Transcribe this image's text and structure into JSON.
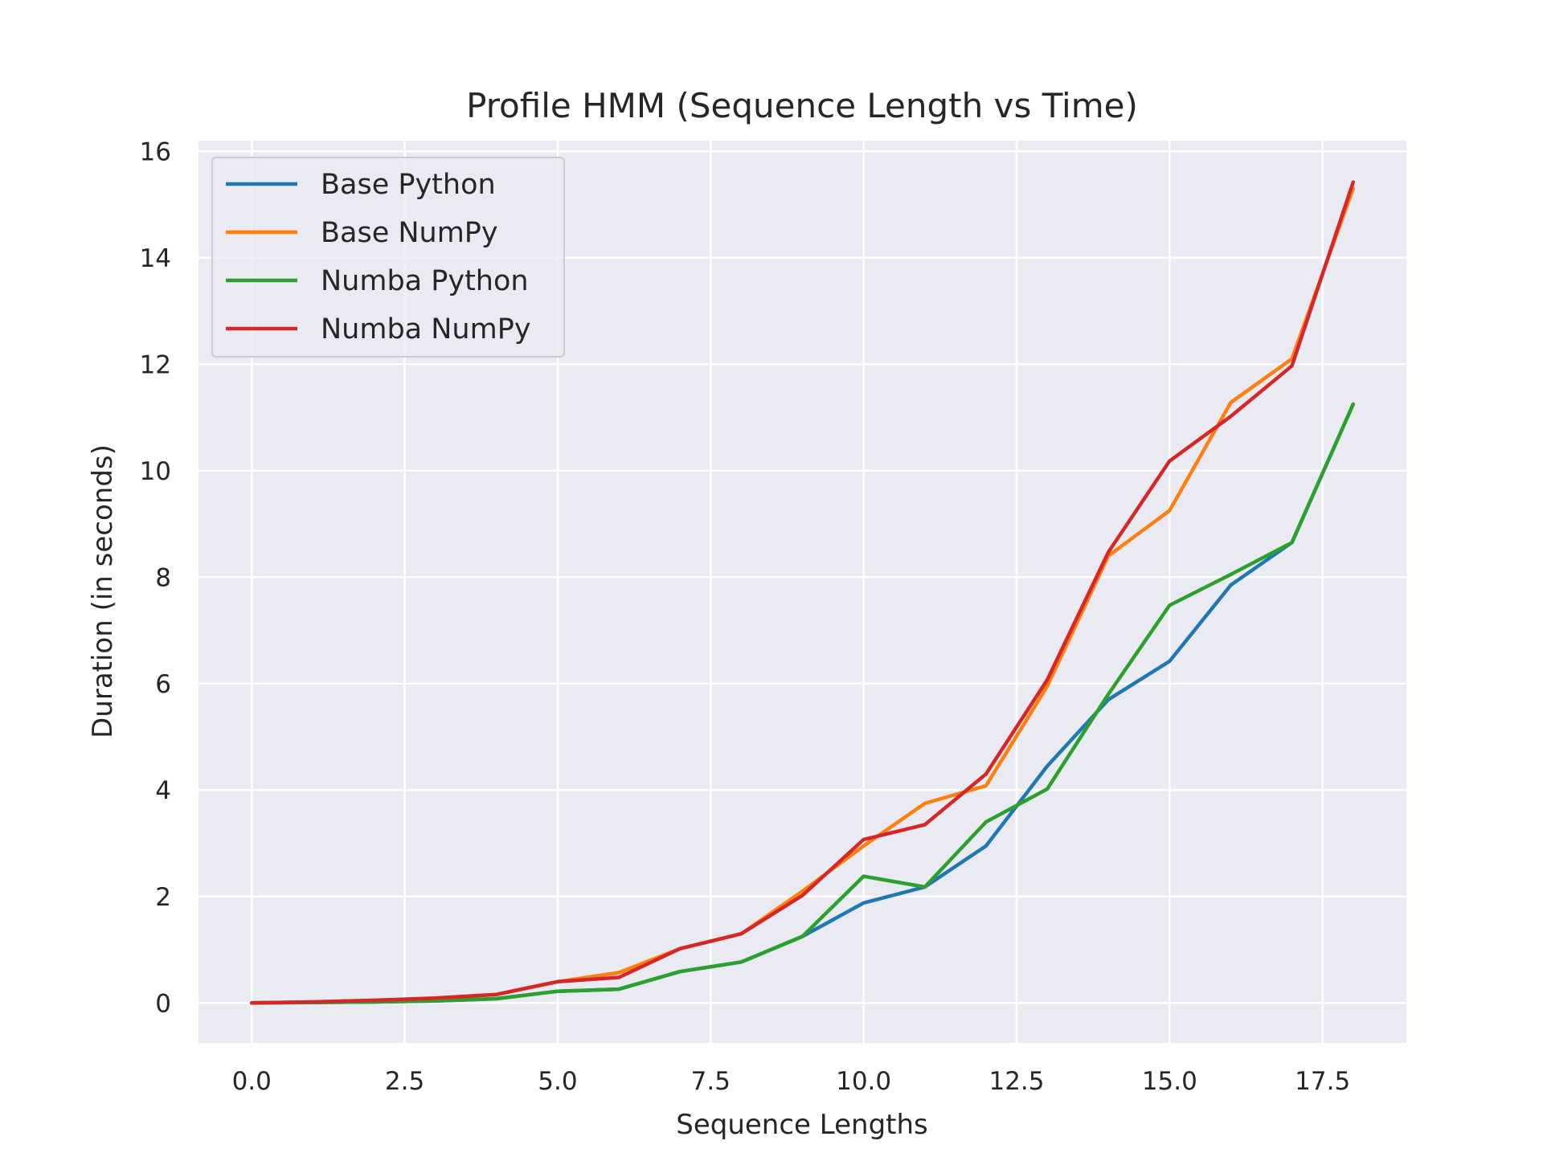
{
  "chart_data": {
    "type": "line",
    "title": "Profile HMM (Sequence Length vs Time)",
    "xlabel": "Sequence Lengths",
    "ylabel": "Duration (in seconds)",
    "xlim": [
      -0.87,
      18.87
    ],
    "ylim": [
      -0.75,
      16.2
    ],
    "xticks": [
      "0.0",
      "2.5",
      "5.0",
      "7.5",
      "10.0",
      "12.5",
      "15.0",
      "17.5"
    ],
    "yticks": [
      "0",
      "2",
      "4",
      "6",
      "8",
      "10",
      "12",
      "14",
      "16"
    ],
    "grid": true,
    "legend_position": "top-left",
    "x": [
      0,
      1,
      2,
      3,
      4,
      5,
      6,
      7,
      8,
      9,
      10,
      11,
      12,
      13,
      14,
      15,
      16,
      17,
      18
    ],
    "series": [
      {
        "name": "Base Python",
        "color": "#1f77b4",
        "values": [
          0.0,
          0.01,
          0.02,
          0.04,
          0.08,
          0.22,
          0.26,
          0.59,
          0.77,
          1.25,
          1.88,
          2.18,
          2.95,
          4.45,
          5.7,
          6.42,
          7.85,
          8.65,
          11.25
        ]
      },
      {
        "name": "Base NumPy",
        "color": "#ff7f0e",
        "values": [
          0.0,
          0.02,
          0.05,
          0.09,
          0.16,
          0.4,
          0.57,
          1.02,
          1.3,
          2.1,
          2.95,
          3.75,
          4.08,
          5.95,
          8.4,
          9.25,
          11.28,
          12.1,
          15.3
        ]
      },
      {
        "name": "Numba Python",
        "color": "#2ca02c",
        "values": [
          0.0,
          0.01,
          0.02,
          0.04,
          0.08,
          0.22,
          0.26,
          0.59,
          0.77,
          1.25,
          2.38,
          2.18,
          3.4,
          4.02,
          5.8,
          7.47,
          8.05,
          8.65,
          11.25
        ]
      },
      {
        "name": "Numba NumPy",
        "color": "#d62728",
        "values": [
          0.0,
          0.02,
          0.05,
          0.09,
          0.16,
          0.4,
          0.48,
          1.02,
          1.3,
          2.02,
          3.07,
          3.35,
          4.3,
          6.07,
          8.47,
          10.18,
          11.02,
          11.97,
          15.42
        ]
      }
    ]
  }
}
